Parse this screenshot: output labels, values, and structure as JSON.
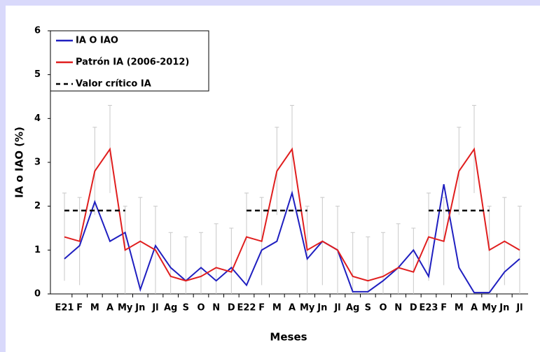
{
  "chart_data": {
    "type": "line",
    "y_label": "IA o IAO (%)",
    "x_label": "Meses",
    "categories": [
      "E21",
      "F",
      "M",
      "A",
      "My",
      "Jn",
      "Jl",
      "Ag",
      "S",
      "O",
      "N",
      "D",
      "E22",
      "F",
      "M",
      "A",
      "My",
      "Jn",
      "Jl",
      "Ag",
      "S",
      "O",
      "N",
      "D",
      "E23",
      "F",
      "M",
      "A",
      "My",
      "Jn",
      "Jl"
    ],
    "series": [
      {
        "name": "IA O IAO",
        "color": "#1f1fc0",
        "dash": false,
        "values": [
          0.8,
          1.1,
          2.1,
          1.2,
          1.4,
          0.1,
          1.1,
          0.6,
          0.3,
          0.6,
          0.3,
          0.6,
          0.2,
          1.0,
          1.2,
          2.3,
          0.8,
          1.2,
          1.0,
          0.05,
          0.05,
          0.3,
          0.6,
          1.0,
          0.4,
          2.5,
          0.6,
          0.03,
          0.03,
          0.5,
          0.8
        ]
      },
      {
        "name": "Patrón IA (2006-2012)",
        "color": "#e01e1e",
        "dash": false,
        "values": [
          1.3,
          1.2,
          2.8,
          3.3,
          1.0,
          1.2,
          1.0,
          0.4,
          0.3,
          0.4,
          0.6,
          0.5,
          1.3,
          1.2,
          2.8,
          3.3,
          1.0,
          1.2,
          1.0,
          0.4,
          0.3,
          0.4,
          0.6,
          0.5,
          1.3,
          1.2,
          2.8,
          3.3,
          1.0,
          1.2,
          1.0
        ],
        "error": [
          1.0,
          1.0,
          1.0,
          1.0,
          1.0,
          1.0,
          1.0,
          1.0,
          1.0,
          1.0,
          1.0,
          1.0,
          1.0,
          1.0,
          1.0,
          1.0,
          1.0,
          1.0,
          1.0,
          1.0,
          1.0,
          1.0,
          1.0,
          1.0,
          1.0,
          1.0,
          1.0,
          1.0,
          1.0,
          1.0,
          1.0
        ],
        "error_color": "#c8c8c8"
      },
      {
        "name": "Valor crítico IA",
        "color": "#000000",
        "dash": true,
        "values": [
          1.9,
          1.9,
          1.9,
          1.9,
          1.9,
          null,
          null,
          null,
          null,
          null,
          null,
          null,
          1.9,
          1.9,
          1.9,
          1.9,
          1.9,
          null,
          null,
          null,
          null,
          null,
          null,
          null,
          1.9,
          1.9,
          1.9,
          1.9,
          1.9,
          null,
          null
        ]
      }
    ],
    "ylim": [
      0,
      6
    ],
    "yticks": [
      0,
      1,
      2,
      3,
      4,
      5,
      6
    ],
    "grid": false,
    "legend": "upper left"
  }
}
